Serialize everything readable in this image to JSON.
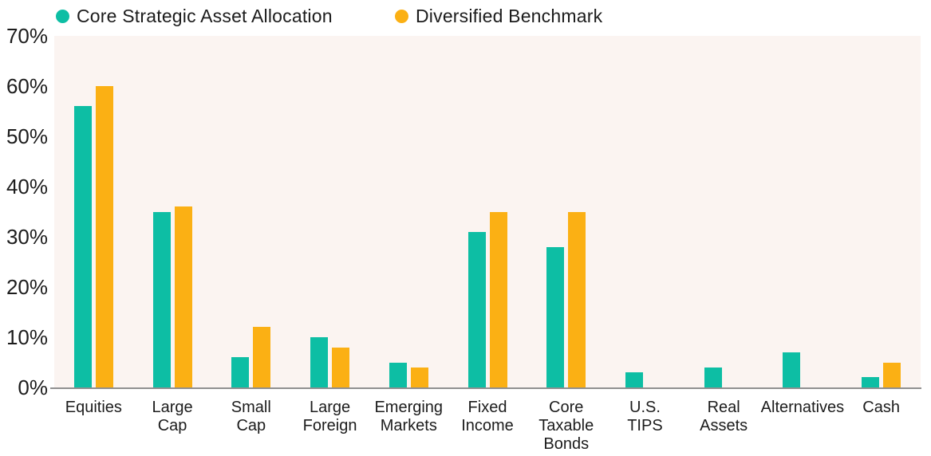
{
  "legend": [
    {
      "label": "Core Strategic Asset Allocation",
      "color": "#0DBEA4"
    },
    {
      "label": "Diversified Benchmark",
      "color": "#FBB014"
    }
  ],
  "chart_data": {
    "type": "bar",
    "title": "",
    "categories": [
      "Equities",
      "Large Cap",
      "Small Cap",
      "Large Foreign",
      "Emerging Markets",
      "Fixed Income",
      "Core Taxable Bonds",
      "U.S. TIPS",
      "Real Assets",
      "Alternatives",
      "Cash"
    ],
    "series": [
      {
        "name": "Core Strategic Asset Allocation",
        "color": "#0DBEA4",
        "values": [
          56,
          35,
          6,
          10,
          5,
          31,
          28,
          3,
          4,
          7,
          2
        ]
      },
      {
        "name": "Diversified Benchmark",
        "color": "#FBB014",
        "values": [
          60,
          36,
          12,
          8,
          4,
          35,
          35,
          0,
          0,
          0,
          5
        ]
      }
    ],
    "xlabel": "",
    "ylabel": "",
    "y_ticks": [
      "0%",
      "10%",
      "20%",
      "30%",
      "40%",
      "50%",
      "60%",
      "70%"
    ],
    "ylim": [
      0,
      70
    ],
    "grid": false,
    "legend_position": "top",
    "colors": {
      "plot_background": "#FBF4F1",
      "axis_line": "#909090",
      "text": "#1c1c1c",
      "page_background": "#ffffff"
    }
  }
}
